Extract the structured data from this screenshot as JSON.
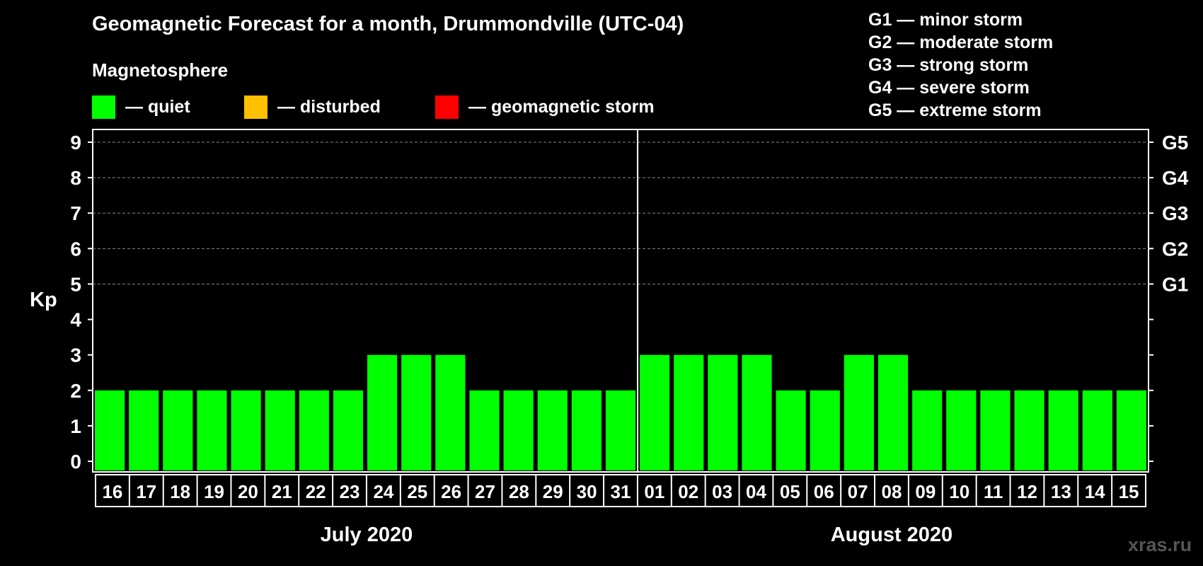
{
  "title": "Geomagnetic Forecast for a month, Drummondville (UTC-04)",
  "magnetosphere_label": "Magnetosphere",
  "legend": [
    {
      "label": "— quiet",
      "color": "#00ff00"
    },
    {
      "label": "— disturbed",
      "color": "#ffc000"
    },
    {
      "label": "— geomagnetic storm",
      "color": "#ff0000"
    }
  ],
  "storm_levels": [
    {
      "level": "G1",
      "text": "G1 — minor storm",
      "kp": 5
    },
    {
      "level": "G2",
      "text": "G2 — moderate storm",
      "kp": 6
    },
    {
      "level": "G3",
      "text": "G3 — strong storm",
      "kp": 7
    },
    {
      "level": "G4",
      "text": "G4 — severe storm",
      "kp": 8
    },
    {
      "level": "G5",
      "text": "G5 — extreme storm",
      "kp": 9
    }
  ],
  "watermark": "xras.ru",
  "chart_data": {
    "type": "bar",
    "ylabel": "Kp",
    "ylim": [
      0,
      9
    ],
    "yticks": [
      0,
      1,
      2,
      3,
      4,
      5,
      6,
      7,
      8,
      9
    ],
    "gridlines_at": [
      5,
      6,
      7,
      8,
      9
    ],
    "categories": [
      "16",
      "17",
      "18",
      "19",
      "20",
      "21",
      "22",
      "23",
      "24",
      "25",
      "26",
      "27",
      "28",
      "29",
      "30",
      "31",
      "01",
      "02",
      "03",
      "04",
      "05",
      "06",
      "07",
      "08",
      "09",
      "10",
      "11",
      "12",
      "13",
      "14",
      "15"
    ],
    "values": [
      2,
      2,
      2,
      2,
      2,
      2,
      2,
      2,
      3,
      3,
      3,
      2,
      2,
      2,
      2,
      2,
      3,
      3,
      3,
      3,
      2,
      2,
      3,
      3,
      2,
      2,
      2,
      2,
      2,
      2,
      2
    ],
    "bar_color": "#00ff00",
    "month_groups": [
      {
        "label": "July 2020",
        "start": 0,
        "count": 16
      },
      {
        "label": "August 2020",
        "start": 16,
        "count": 15
      }
    ]
  }
}
